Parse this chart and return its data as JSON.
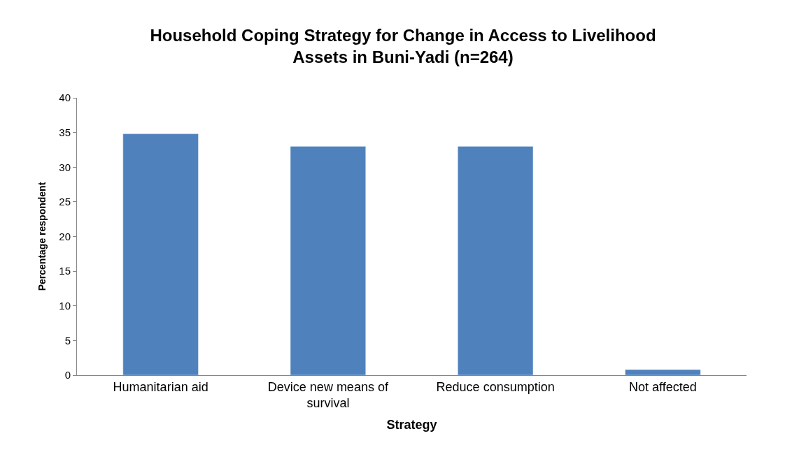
{
  "chart_data": {
    "type": "bar",
    "title": "Household Coping Strategy for Change in Access to Livelihood Assets in Buni-Yadi (n=264)",
    "xlabel": "Strategy",
    "ylabel": "Percentage respondent",
    "categories": [
      "Humanitarian aid",
      "Device new means of survival",
      "Reduce consumption",
      "Not affected"
    ],
    "values": [
      34.8,
      33,
      33,
      0.8
    ],
    "color": "#4f81bd",
    "ylim": [
      0,
      40
    ],
    "yticks": [
      0,
      5,
      10,
      15,
      20,
      25,
      30,
      35,
      40
    ]
  }
}
